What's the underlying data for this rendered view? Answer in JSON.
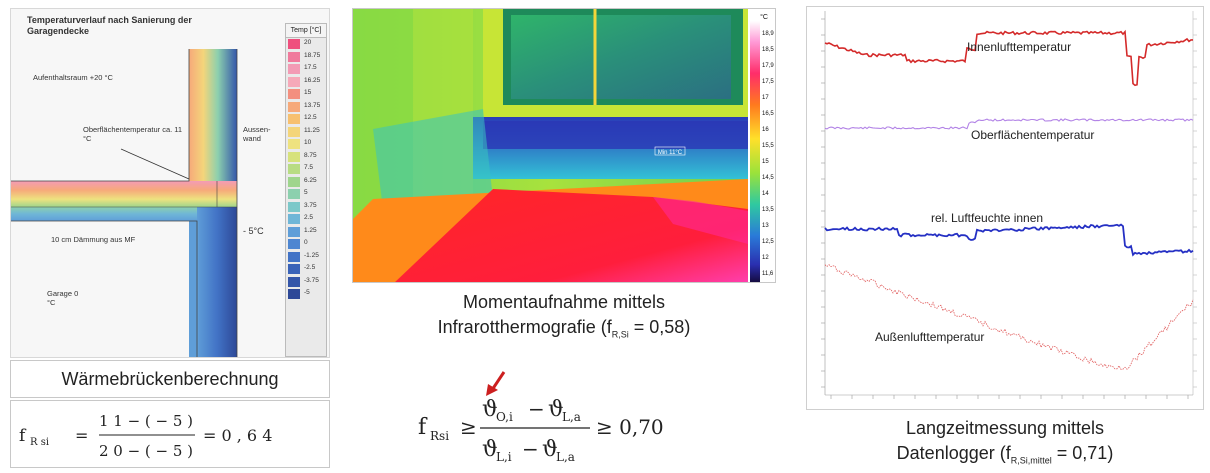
{
  "left": {
    "sim_title": "Temperaturverlauf nach Sanierung der Garagendecke",
    "label_room": "Aufenthaltsraum +20 °C",
    "label_surface": "Oberflächentemperatur ca. 11 °C",
    "label_wall": "Aussen-wand",
    "label_insulation": "10 cm Dämmung aus MF",
    "label_garage": "Garage 0 °C",
    "label_outside": "- 5°C",
    "legend_header": "Temp [°C]",
    "legend": [
      {
        "value": "20",
        "color": "#ef4f7e"
      },
      {
        "value": "18.75",
        "color": "#f07a9c"
      },
      {
        "value": "17.5",
        "color": "#f39bb5"
      },
      {
        "value": "16.25",
        "color": "#f6a9b9"
      },
      {
        "value": "15",
        "color": "#f38f7f"
      },
      {
        "value": "13.75",
        "color": "#f6a97a"
      },
      {
        "value": "12.5",
        "color": "#f7c06f"
      },
      {
        "value": "11.25",
        "color": "#f4d57a"
      },
      {
        "value": "10",
        "color": "#eee27f"
      },
      {
        "value": "8.75",
        "color": "#d7e27c"
      },
      {
        "value": "7.5",
        "color": "#b8dc84"
      },
      {
        "value": "6.25",
        "color": "#9fd58d"
      },
      {
        "value": "5",
        "color": "#8cd0ae"
      },
      {
        "value": "3.75",
        "color": "#7cc8c9"
      },
      {
        "value": "2.5",
        "color": "#6fb6d7"
      },
      {
        "value": "1.25",
        "color": "#5f9ed8"
      },
      {
        "value": "0",
        "color": "#4e86d1"
      },
      {
        "value": "-1.25",
        "color": "#4273c6"
      },
      {
        "value": "-2.5",
        "color": "#3a63b8"
      },
      {
        "value": "-3.75",
        "color": "#3456a9"
      },
      {
        "value": "-5",
        "color": "#2d4897"
      }
    ],
    "title": "Wärmebrückenberechnung",
    "formula_prefix": "f",
    "formula_sub": "R si",
    "formula_eq": "=",
    "formula_num": "1 1  −  ( − 5 )",
    "formula_den": "2 0  −  ( − 5 )",
    "formula_result": "=  0 , 6 4"
  },
  "middle": {
    "scale_unit": "°C",
    "scale": [
      "18,9",
      "18,5",
      "17,9",
      "17,5",
      "17",
      "16,5",
      "16",
      "15,5",
      "15",
      "14,5",
      "14",
      "13,5",
      "13",
      "12,5",
      "12",
      "11,6"
    ],
    "spot_label": "Min 11°C",
    "caption_line1": "Momentaufnahme mittels",
    "caption_line2_pre": "Infrarotthermografie (f",
    "caption_line2_sub": "R,Si",
    "caption_line2_post": " = 0,58)",
    "formula_f": "f",
    "formula_f_sub": "Rsi",
    "formula_geq": "≥",
    "formula_num_a": "ϑ",
    "formula_num_a_sub": "O,i",
    "formula_minus": "−",
    "formula_num_b": "ϑ",
    "formula_num_b_sub": "L,a",
    "formula_den_a": "ϑ",
    "formula_den_a_sub": "L,i",
    "formula_den_b": "ϑ",
    "formula_den_b_sub": "L,a",
    "formula_result": "≥ 0,70",
    "arrow_color": "#cc1f1f"
  },
  "right": {
    "series_indoor": "Innenlufttemperatur",
    "series_surface": "Oberflächentemperatur",
    "series_humidity": "rel. Luftfeuchte innen",
    "series_outdoor": "Außenlufttemperatur",
    "colors": {
      "indoor": "#d42a2a",
      "surface": "#b283e6",
      "humidity": "#2530c4",
      "outdoor": "#e05a5a"
    },
    "caption_line1": "Langzeitmessung mittels",
    "caption_line2_pre": "Datenlogger (f",
    "caption_line2_sub": "R,Si,mittel",
    "caption_line2_post": " = 0,71)"
  }
}
